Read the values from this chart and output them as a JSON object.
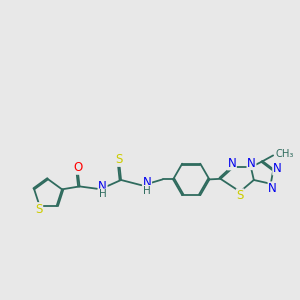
{
  "bg_color": "#e8e8e8",
  "bond_color": "#2f6b5e",
  "atom_colors": {
    "S": "#cccc00",
    "N": "#0000ee",
    "O": "#ff0000",
    "H": "#2f6b5e"
  },
  "lw": 1.3,
  "fs": 8.5
}
